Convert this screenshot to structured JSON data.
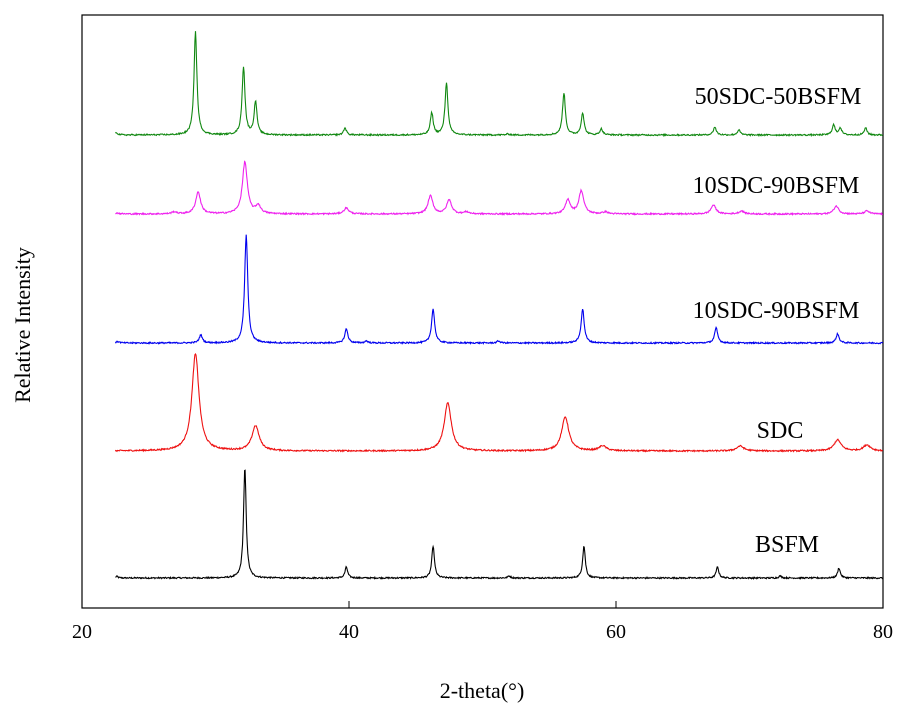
{
  "chart_data": {
    "type": "line",
    "xlabel": "2-theta(°)",
    "ylabel": "Relative Intensity",
    "xlim": [
      20,
      80
    ],
    "xticks": [
      "20",
      "40",
      "60",
      "80"
    ],
    "yticks_shown": false,
    "grid": false,
    "legend": "inline labels on the right of each trace",
    "baseline_min": 22.5,
    "series": [
      {
        "name": "BSFM",
        "color": "#000000",
        "offset": 0,
        "width": 0.12,
        "peaks": [
          [
            22.6,
            1.5
          ],
          [
            32.2,
            110
          ],
          [
            39.8,
            11
          ],
          [
            46.3,
            32
          ],
          [
            52.0,
            2
          ],
          [
            57.6,
            32
          ],
          [
            67.6,
            11
          ],
          [
            72.3,
            2
          ],
          [
            76.7,
            10
          ]
        ]
      },
      {
        "name": "SDC",
        "color": "#ee1111",
        "offset": 127,
        "width": 0.32,
        "peaks": [
          [
            28.5,
            97
          ],
          [
            33.0,
            25
          ],
          [
            47.4,
            48
          ],
          [
            56.2,
            34
          ],
          [
            59.0,
            5
          ],
          [
            69.3,
            5
          ],
          [
            76.6,
            11
          ],
          [
            78.8,
            6
          ]
        ]
      },
      {
        "name": "10SDC-90BSFM",
        "color": "#0000ee",
        "offset": 235,
        "width": 0.14,
        "peaks": [
          [
            22.7,
            1.5
          ],
          [
            28.9,
            8
          ],
          [
            32.3,
            108
          ],
          [
            39.8,
            14
          ],
          [
            41.3,
            2
          ],
          [
            46.3,
            34
          ],
          [
            51.2,
            2
          ],
          [
            57.5,
            34
          ],
          [
            67.5,
            15
          ],
          [
            76.6,
            9
          ]
        ]
      },
      {
        "name": "10SDC-90BSFM",
        "color": "#ee22ee",
        "offset": 364,
        "width": 0.22,
        "peaks": [
          [
            22.6,
            1
          ],
          [
            26.9,
            2
          ],
          [
            28.7,
            22
          ],
          [
            32.2,
            52
          ],
          [
            33.2,
            8
          ],
          [
            39.8,
            6
          ],
          [
            46.1,
            18
          ],
          [
            47.5,
            14
          ],
          [
            48.8,
            2
          ],
          [
            56.4,
            14
          ],
          [
            57.4,
            23
          ],
          [
            59.2,
            2
          ],
          [
            67.3,
            9
          ],
          [
            69.4,
            3
          ],
          [
            76.5,
            8
          ],
          [
            78.8,
            3
          ]
        ]
      },
      {
        "name": "50SDC-50BSFM",
        "color": "#118811",
        "offset": 443,
        "width": 0.13,
        "peaks": [
          [
            22.6,
            2
          ],
          [
            28.5,
            103
          ],
          [
            32.1,
            68
          ],
          [
            33.0,
            33
          ],
          [
            39.7,
            7
          ],
          [
            46.2,
            22
          ],
          [
            47.3,
            52
          ],
          [
            51.9,
            1
          ],
          [
            56.1,
            42
          ],
          [
            57.5,
            22
          ],
          [
            58.9,
            6
          ],
          [
            67.4,
            8
          ],
          [
            69.2,
            5
          ],
          [
            76.3,
            10
          ],
          [
            76.8,
            7
          ],
          [
            78.7,
            7
          ]
        ]
      }
    ]
  }
}
